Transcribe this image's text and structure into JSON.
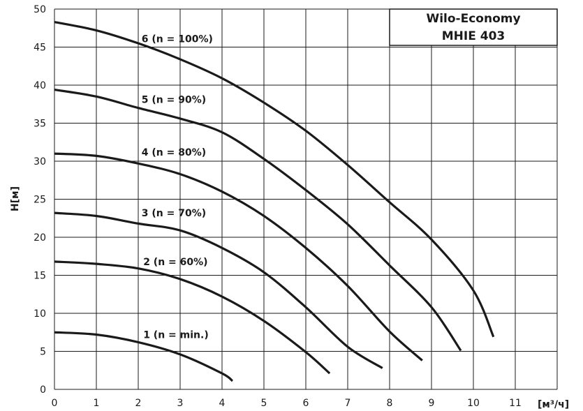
{
  "chart_data": {
    "type": "line",
    "title": [
      "Wilo-Economy",
      "MHIE 403"
    ],
    "xlabel": "[м³/ч]",
    "ylabel": "H[м]",
    "xlim": [
      0,
      12
    ],
    "ylim": [
      0,
      50
    ],
    "xticks": [
      0,
      1,
      2,
      3,
      4,
      5,
      6,
      7,
      8,
      9,
      10,
      11
    ],
    "yticks": [
      0,
      5,
      10,
      15,
      20,
      25,
      30,
      35,
      40,
      45,
      50
    ],
    "grid": true,
    "legend": "none (inline curve labels)",
    "series": [
      {
        "name": "6 (n = 100%)",
        "label_at": [
          2.08,
          46.1
        ],
        "x": [
          0,
          1,
          2,
          3,
          4,
          5,
          6,
          7,
          8,
          9,
          10,
          10.48
        ],
        "y": [
          48.3,
          47.2,
          45.5,
          43.4,
          40.9,
          37.7,
          34,
          29.5,
          24.6,
          19.7,
          13,
          6.9
        ]
      },
      {
        "name": "5  (n = 90%)",
        "label_at": [
          2.08,
          38.1
        ],
        "x": [
          0,
          1,
          2,
          3,
          4,
          5,
          6,
          7,
          8,
          9,
          9.7
        ],
        "y": [
          39.4,
          38.5,
          37,
          35.6,
          33.8,
          30.3,
          26.2,
          21.7,
          16.3,
          10.8,
          5.1
        ]
      },
      {
        "name": "4  (n = 80%)",
        "label_at": [
          2.08,
          31.2
        ],
        "x": [
          0,
          1,
          2,
          3,
          4,
          5,
          6,
          7,
          8,
          8.78
        ],
        "y": [
          31,
          30.7,
          29.7,
          28.3,
          26,
          22.8,
          18.6,
          13.6,
          7.6,
          3.8
        ]
      },
      {
        "name": "3 (n = 70%)",
        "label_at": [
          2.08,
          23.2
        ],
        "x": [
          0,
          1,
          2,
          3,
          4,
          5,
          6,
          7,
          7.83
        ],
        "y": [
          23.2,
          22.8,
          21.8,
          20.9,
          18.6,
          15.4,
          10.8,
          5.6,
          2.8
        ]
      },
      {
        "name": "2 (n = 60%)",
        "label_at": [
          2.12,
          16.8
        ],
        "x": [
          0,
          1,
          2,
          3,
          4,
          5,
          6,
          6.57
        ],
        "y": [
          16.8,
          16.5,
          15.9,
          14.5,
          12.2,
          9,
          4.9,
          2.1
        ]
      },
      {
        "name": "1 (n = min.)",
        "label_at": [
          2.12,
          7.2
        ],
        "x": [
          0,
          1,
          2,
          3,
          4,
          4.25
        ],
        "y": [
          7.5,
          7.2,
          6.2,
          4.6,
          2.1,
          1.1
        ]
      }
    ]
  }
}
